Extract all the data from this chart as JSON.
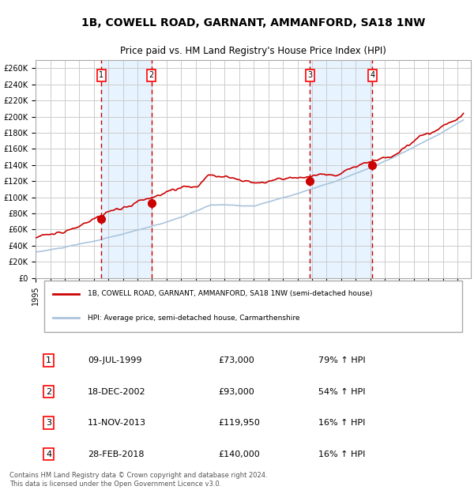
{
  "title_line1": "1B, COWELL ROAD, GARNANT, AMMANFORD, SA18 1NW",
  "title_line2": "Price paid vs. HM Land Registry's House Price Index (HPI)",
  "ylabel": "",
  "background_color": "#ffffff",
  "plot_bg_color": "#ffffff",
  "grid_color": "#cccccc",
  "sale_dates": [
    "1999-07-09",
    "2002-12-18",
    "2013-11-11",
    "2018-02-28"
  ],
  "sale_prices": [
    73000,
    93000,
    119950,
    140000
  ],
  "sale_labels": [
    "1",
    "2",
    "3",
    "4"
  ],
  "sale_pct": [
    "79% ↑ HPI",
    "54% ↑ HPI",
    "16% ↑ HPI",
    "16% ↑ HPI"
  ],
  "sale_date_str": [
    "09-JUL-1999",
    "18-DEC-2002",
    "11-NOV-2013",
    "28-FEB-2018"
  ],
  "legend_property": "1B, COWELL ROAD, GARNANT, AMMANFORD, SA18 1NW (semi-detached house)",
  "legend_hpi": "HPI: Average price, semi-detached house, Carmarthenshire",
  "footer1": "Contains HM Land Registry data © Crown copyright and database right 2024.",
  "footer2": "This data is licensed under the Open Government Licence v3.0.",
  "hpi_color": "#aac4dd",
  "property_color": "#cc0000",
  "marker_color": "#cc0000",
  "dashed_line_color": "#cc0000",
  "shade_color": "#ddeeff",
  "ylim_min": 0,
  "ylim_max": 270000,
  "ytick_step": 20000,
  "x_start_year": 1995,
  "x_end_year": 2024
}
